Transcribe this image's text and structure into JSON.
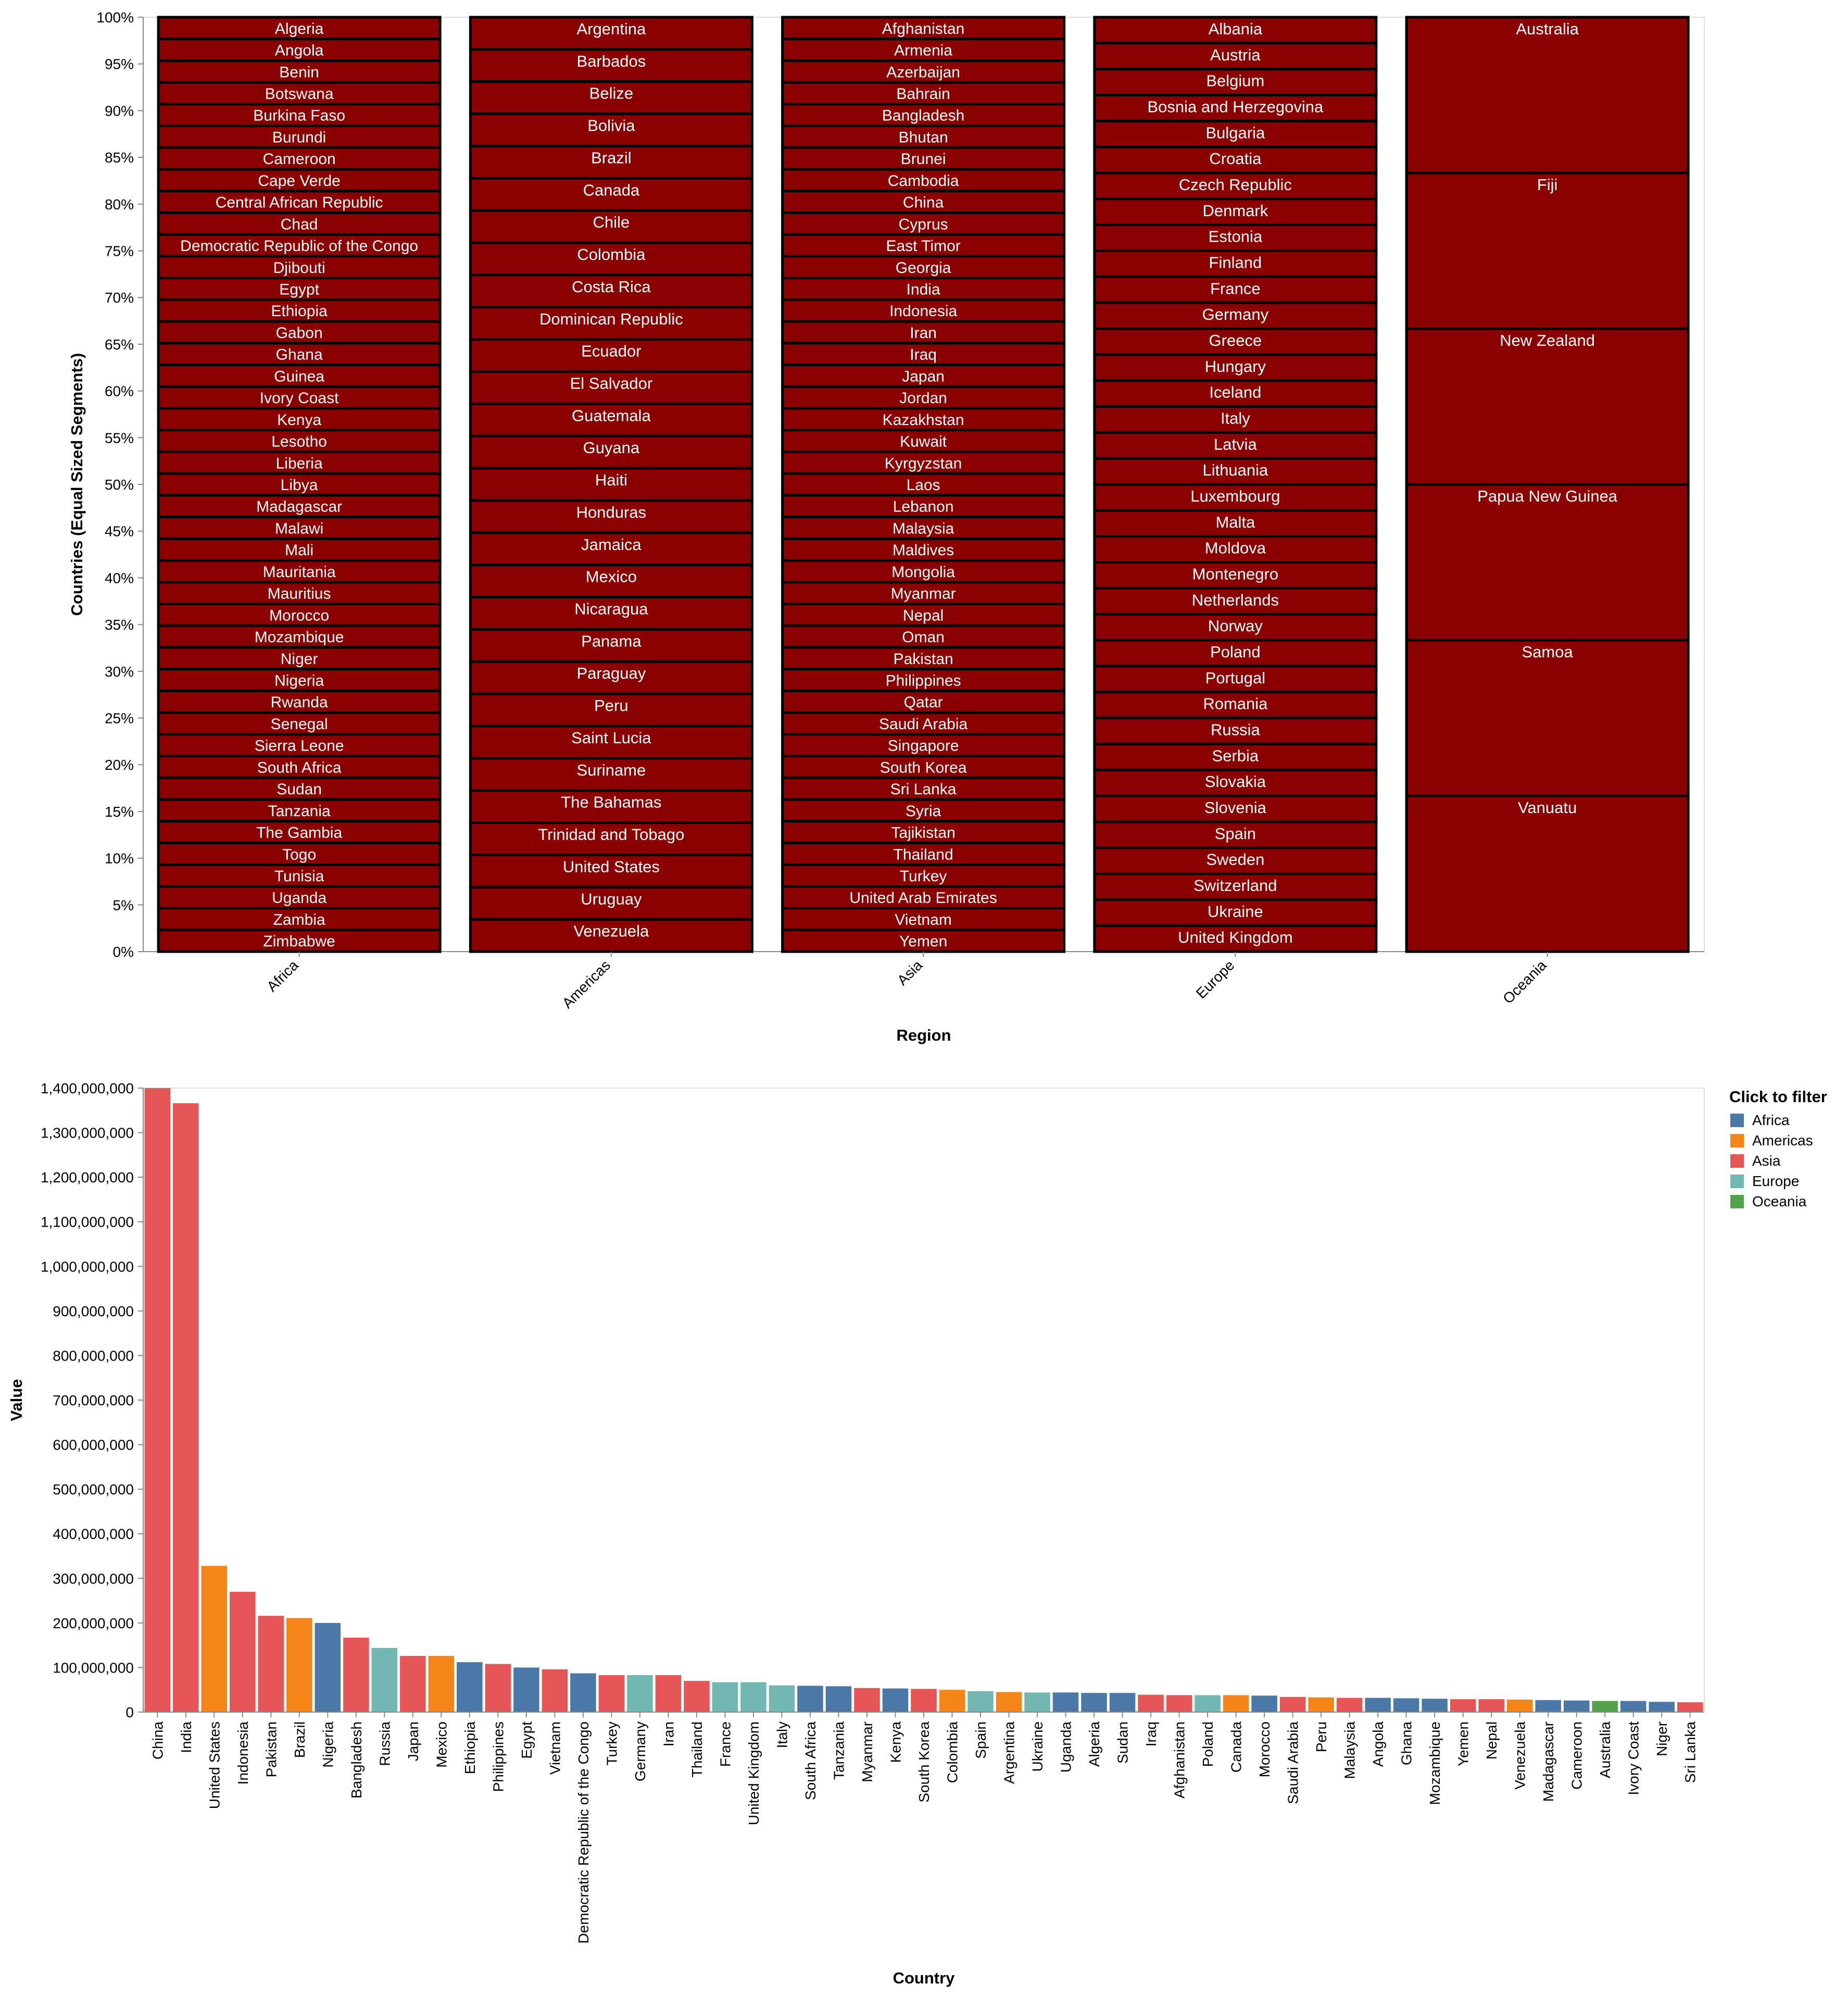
{
  "chart_data": [
    {
      "type": "stacked-bar",
      "xlabel": "Region",
      "ylabel": "Countries (Equal Sized Segments)",
      "y_ticks": [
        "0%",
        "5%",
        "10%",
        "15%",
        "20%",
        "25%",
        "30%",
        "35%",
        "40%",
        "45%",
        "50%",
        "55%",
        "60%",
        "65%",
        "70%",
        "75%",
        "80%",
        "85%",
        "90%",
        "95%",
        "100%"
      ],
      "ylim": [
        0,
        1
      ],
      "segment_color": "#8b0000",
      "categories": [
        "Africa",
        "Americas",
        "Asia",
        "Europe",
        "Oceania"
      ],
      "segments": {
        "Africa": [
          "Algeria",
          "Angola",
          "Benin",
          "Botswana",
          "Burkina Faso",
          "Burundi",
          "Cameroon",
          "Cape Verde",
          "Central African Republic",
          "Chad",
          "Democratic Republic of the Congo",
          "Djibouti",
          "Egypt",
          "Ethiopia",
          "Gabon",
          "Ghana",
          "Guinea",
          "Ivory Coast",
          "Kenya",
          "Lesotho",
          "Liberia",
          "Libya",
          "Madagascar",
          "Malawi",
          "Mali",
          "Mauritania",
          "Mauritius",
          "Morocco",
          "Mozambique",
          "Niger",
          "Nigeria",
          "Rwanda",
          "Senegal",
          "Sierra Leone",
          "South Africa",
          "Sudan",
          "Tanzania",
          "The Gambia",
          "Togo",
          "Tunisia",
          "Uganda",
          "Zambia",
          "Zimbabwe"
        ],
        "Americas": [
          "Argentina",
          "Barbados",
          "Belize",
          "Bolivia",
          "Brazil",
          "Canada",
          "Chile",
          "Colombia",
          "Costa Rica",
          "Dominican Republic",
          "Ecuador",
          "El Salvador",
          "Guatemala",
          "Guyana",
          "Haiti",
          "Honduras",
          "Jamaica",
          "Mexico",
          "Nicaragua",
          "Panama",
          "Paraguay",
          "Peru",
          "Saint Lucia",
          "Suriname",
          "The Bahamas",
          "Trinidad and Tobago",
          "United States",
          "Uruguay",
          "Venezuela"
        ],
        "Asia": [
          "Afghanistan",
          "Armenia",
          "Azerbaijan",
          "Bahrain",
          "Bangladesh",
          "Bhutan",
          "Brunei",
          "Cambodia",
          "China",
          "Cyprus",
          "East Timor",
          "Georgia",
          "India",
          "Indonesia",
          "Iran",
          "Iraq",
          "Japan",
          "Jordan",
          "Kazakhstan",
          "Kuwait",
          "Kyrgyzstan",
          "Laos",
          "Lebanon",
          "Malaysia",
          "Maldives",
          "Mongolia",
          "Myanmar",
          "Nepal",
          "Oman",
          "Pakistan",
          "Philippines",
          "Qatar",
          "Saudi Arabia",
          "Singapore",
          "South Korea",
          "Sri Lanka",
          "Syria",
          "Tajikistan",
          "Thailand",
          "Turkey",
          "United Arab Emirates",
          "Vietnam",
          "Yemen"
        ],
        "Europe": [
          "Albania",
          "Austria",
          "Belgium",
          "Bosnia and Herzegovina",
          "Bulgaria",
          "Croatia",
          "Czech Republic",
          "Denmark",
          "Estonia",
          "Finland",
          "France",
          "Germany",
          "Greece",
          "Hungary",
          "Iceland",
          "Italy",
          "Latvia",
          "Lithuania",
          "Luxembourg",
          "Malta",
          "Moldova",
          "Montenegro",
          "Netherlands",
          "Norway",
          "Poland",
          "Portugal",
          "Romania",
          "Russia",
          "Serbia",
          "Slovakia",
          "Slovenia",
          "Spain",
          "Sweden",
          "Switzerland",
          "Ukraine",
          "United Kingdom"
        ],
        "Oceania": [
          "Australia",
          "Fiji",
          "New Zealand",
          "Papua New Guinea",
          "Samoa",
          "Vanuatu"
        ]
      }
    },
    {
      "type": "bar",
      "xlabel": "Country",
      "ylabel": "Value",
      "ylim": [
        0,
        1400000000
      ],
      "y_ticks": [
        "0",
        "100,000,000",
        "200,000,000",
        "300,000,000",
        "400,000,000",
        "500,000,000",
        "600,000,000",
        "700,000,000",
        "800,000,000",
        "900,000,000",
        "1,000,000,000",
        "1,100,000,000",
        "1,200,000,000",
        "1,300,000,000",
        "1,400,000,000"
      ],
      "legend": {
        "title": "Click to filter",
        "placement": "top-right",
        "items": [
          {
            "label": "Africa",
            "color": "#4c78a8"
          },
          {
            "label": "Americas",
            "color": "#f58518"
          },
          {
            "label": "Asia",
            "color": "#e45756"
          },
          {
            "label": "Europe",
            "color": "#72b7b2"
          },
          {
            "label": "Oceania",
            "color": "#54a24b"
          }
        ]
      },
      "bars": [
        {
          "country": "China",
          "value": 1400000000,
          "region": "Asia"
        },
        {
          "country": "India",
          "value": 1366000000,
          "region": "Asia"
        },
        {
          "country": "United States",
          "value": 328000000,
          "region": "Americas"
        },
        {
          "country": "Indonesia",
          "value": 270000000,
          "region": "Asia"
        },
        {
          "country": "Pakistan",
          "value": 216000000,
          "region": "Asia"
        },
        {
          "country": "Brazil",
          "value": 211000000,
          "region": "Americas"
        },
        {
          "country": "Nigeria",
          "value": 200000000,
          "region": "Africa"
        },
        {
          "country": "Bangladesh",
          "value": 167000000,
          "region": "Asia"
        },
        {
          "country": "Russia",
          "value": 144000000,
          "region": "Europe"
        },
        {
          "country": "Japan",
          "value": 126000000,
          "region": "Asia"
        },
        {
          "country": "Mexico",
          "value": 126000000,
          "region": "Americas"
        },
        {
          "country": "Ethiopia",
          "value": 112000000,
          "region": "Africa"
        },
        {
          "country": "Philippines",
          "value": 108000000,
          "region": "Asia"
        },
        {
          "country": "Egypt",
          "value": 100000000,
          "region": "Africa"
        },
        {
          "country": "Vietnam",
          "value": 96000000,
          "region": "Asia"
        },
        {
          "country": "Democratic Republic of the Congo",
          "value": 87000000,
          "region": "Africa"
        },
        {
          "country": "Turkey",
          "value": 83000000,
          "region": "Asia"
        },
        {
          "country": "Germany",
          "value": 83000000,
          "region": "Europe"
        },
        {
          "country": "Iran",
          "value": 83000000,
          "region": "Asia"
        },
        {
          "country": "Thailand",
          "value": 70000000,
          "region": "Asia"
        },
        {
          "country": "France",
          "value": 67000000,
          "region": "Europe"
        },
        {
          "country": "United Kingdom",
          "value": 67000000,
          "region": "Europe"
        },
        {
          "country": "Italy",
          "value": 60000000,
          "region": "Europe"
        },
        {
          "country": "South Africa",
          "value": 59000000,
          "region": "Africa"
        },
        {
          "country": "Tanzania",
          "value": 58000000,
          "region": "Africa"
        },
        {
          "country": "Myanmar",
          "value": 54000000,
          "region": "Asia"
        },
        {
          "country": "Kenya",
          "value": 53000000,
          "region": "Africa"
        },
        {
          "country": "South Korea",
          "value": 52000000,
          "region": "Asia"
        },
        {
          "country": "Colombia",
          "value": 50000000,
          "region": "Americas"
        },
        {
          "country": "Spain",
          "value": 47000000,
          "region": "Europe"
        },
        {
          "country": "Argentina",
          "value": 45000000,
          "region": "Americas"
        },
        {
          "country": "Ukraine",
          "value": 44000000,
          "region": "Europe"
        },
        {
          "country": "Uganda",
          "value": 44000000,
          "region": "Africa"
        },
        {
          "country": "Algeria",
          "value": 43000000,
          "region": "Africa"
        },
        {
          "country": "Sudan",
          "value": 43000000,
          "region": "Africa"
        },
        {
          "country": "Iraq",
          "value": 39000000,
          "region": "Asia"
        },
        {
          "country": "Afghanistan",
          "value": 38000000,
          "region": "Asia"
        },
        {
          "country": "Poland",
          "value": 38000000,
          "region": "Europe"
        },
        {
          "country": "Canada",
          "value": 38000000,
          "region": "Americas"
        },
        {
          "country": "Morocco",
          "value": 37000000,
          "region": "Africa"
        },
        {
          "country": "Saudi Arabia",
          "value": 34000000,
          "region": "Asia"
        },
        {
          "country": "Peru",
          "value": 33000000,
          "region": "Americas"
        },
        {
          "country": "Malaysia",
          "value": 32000000,
          "region": "Asia"
        },
        {
          "country": "Angola",
          "value": 32000000,
          "region": "Africa"
        },
        {
          "country": "Ghana",
          "value": 31000000,
          "region": "Africa"
        },
        {
          "country": "Mozambique",
          "value": 30000000,
          "region": "Africa"
        },
        {
          "country": "Yemen",
          "value": 29000000,
          "region": "Asia"
        },
        {
          "country": "Nepal",
          "value": 29000000,
          "region": "Asia"
        },
        {
          "country": "Venezuela",
          "value": 28000000,
          "region": "Americas"
        },
        {
          "country": "Madagascar",
          "value": 27000000,
          "region": "Africa"
        },
        {
          "country": "Cameroon",
          "value": 26000000,
          "region": "Africa"
        },
        {
          "country": "Australia",
          "value": 25000000,
          "region": "Oceania"
        },
        {
          "country": "Ivory Coast",
          "value": 25000000,
          "region": "Africa"
        },
        {
          "country": "Niger",
          "value": 23000000,
          "region": "Africa"
        },
        {
          "country": "Sri Lanka",
          "value": 22000000,
          "region": "Asia"
        }
      ]
    }
  ]
}
